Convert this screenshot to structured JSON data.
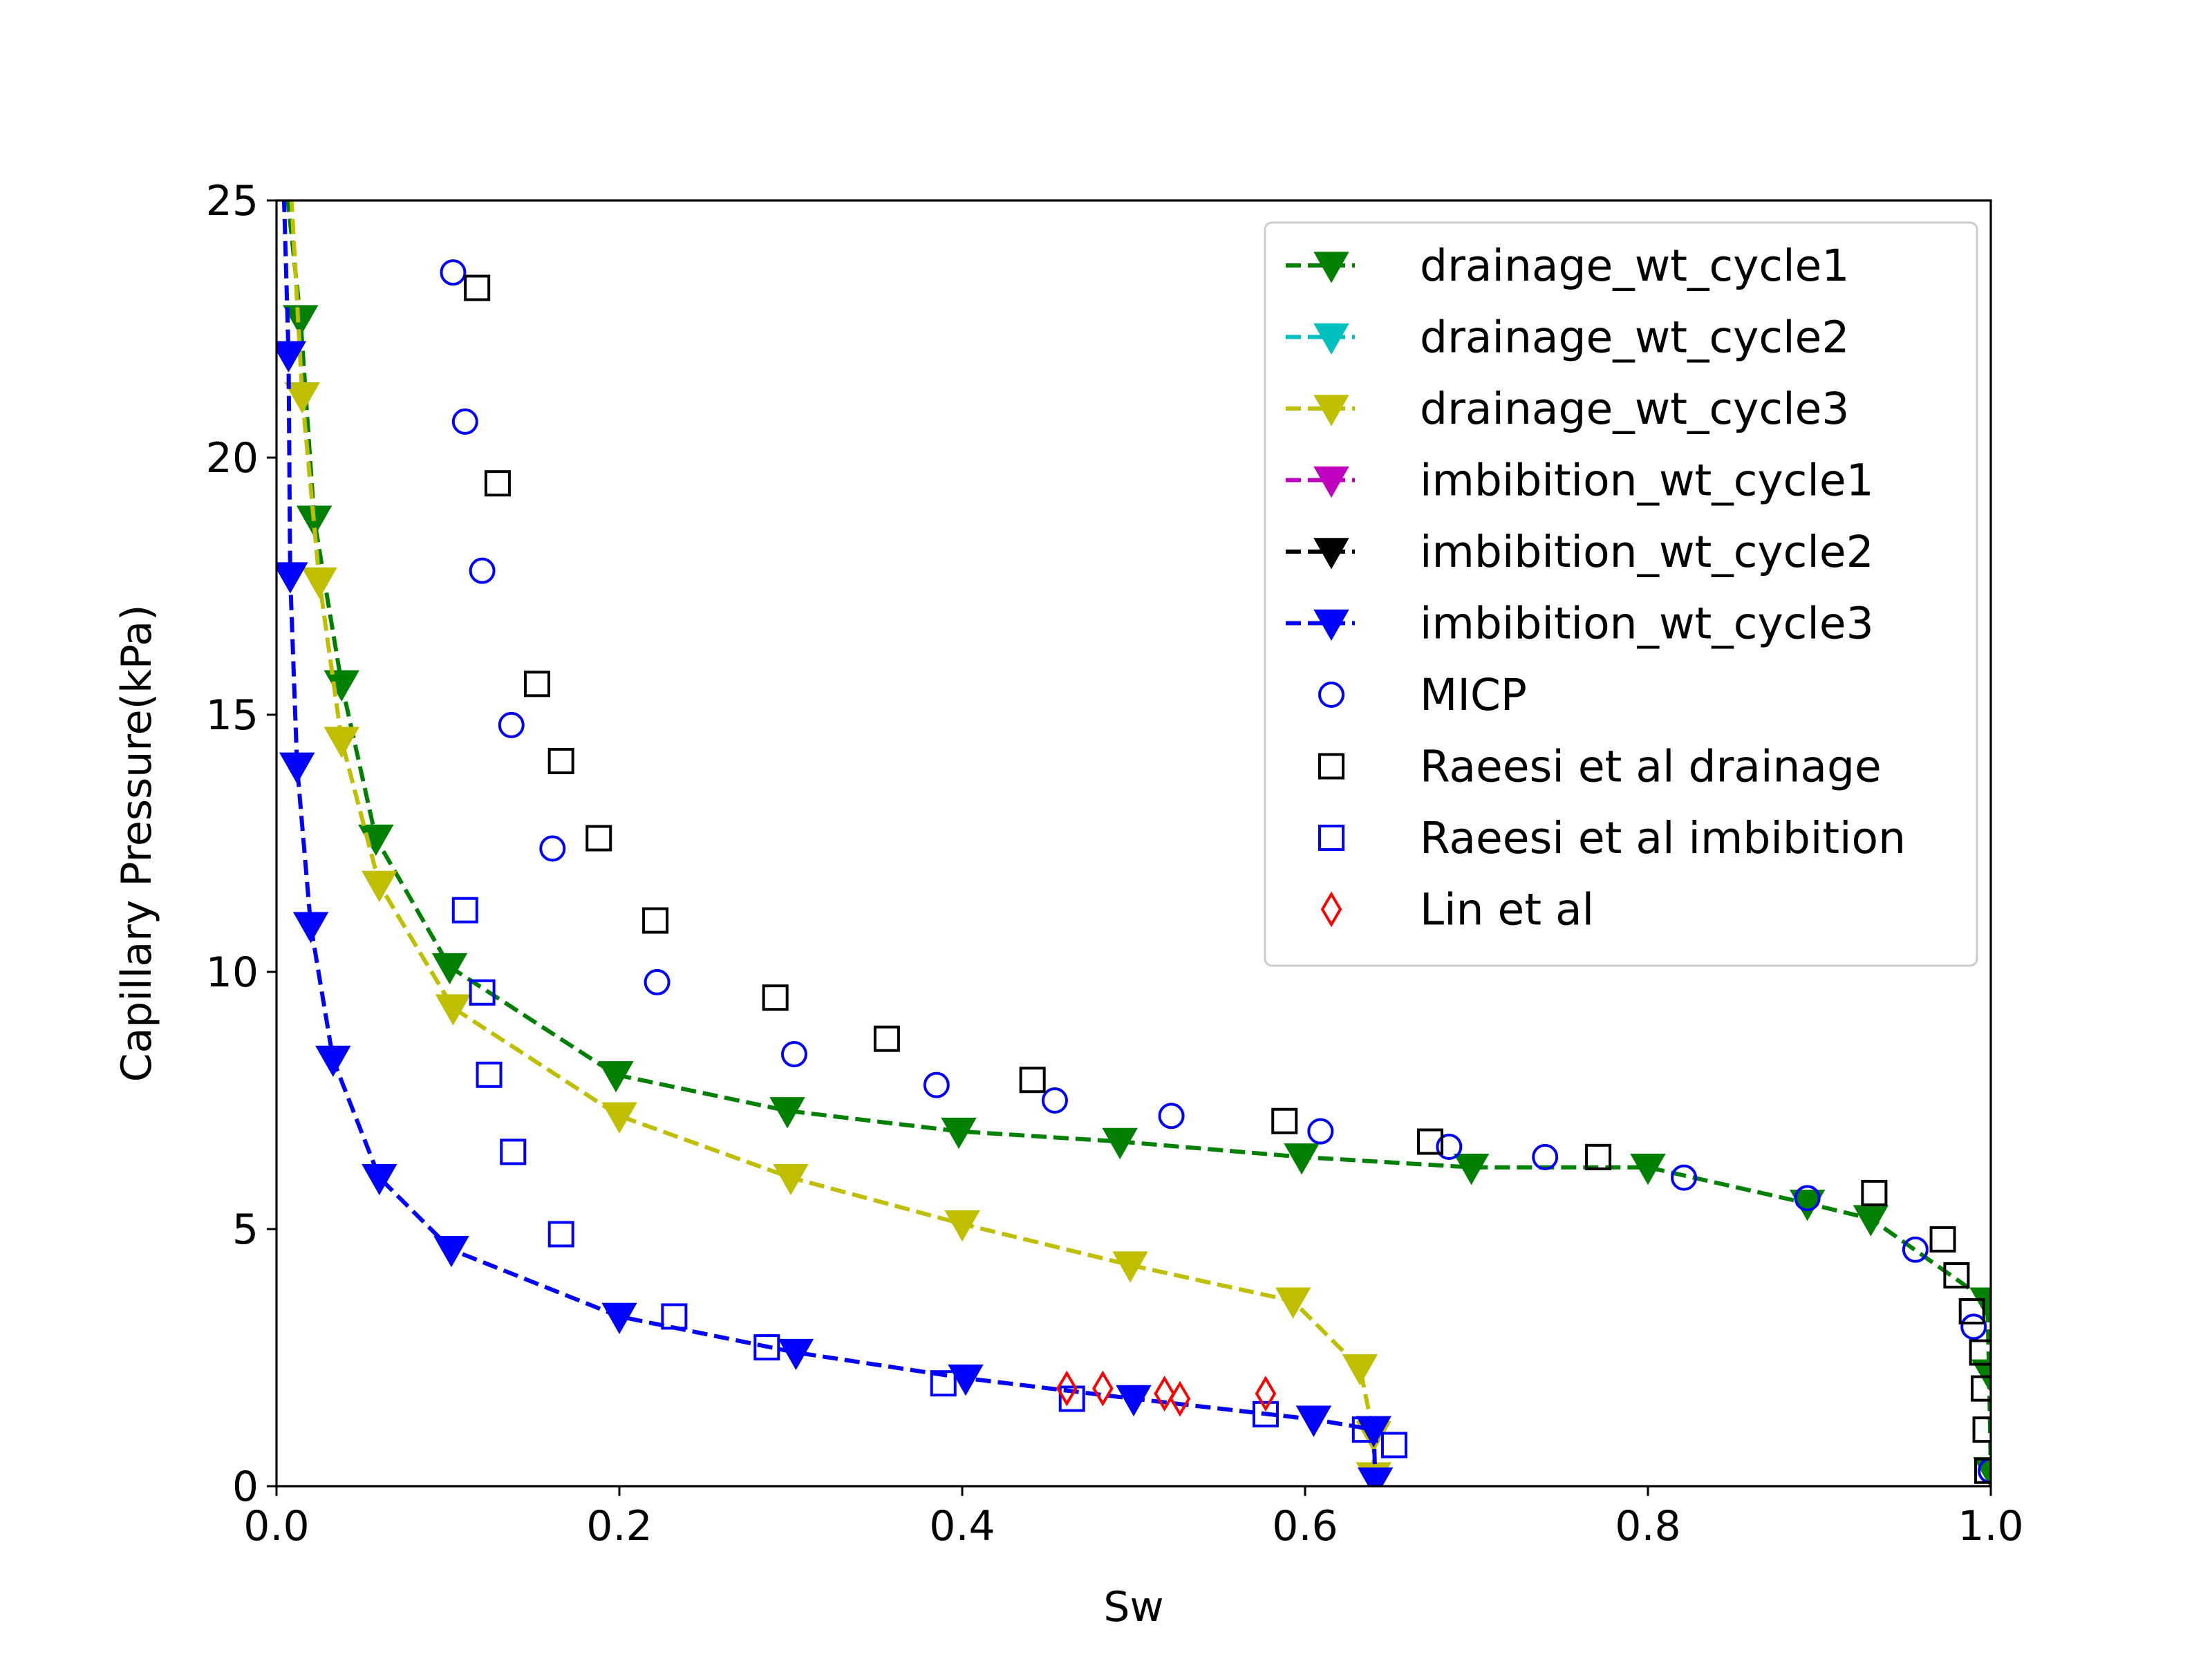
{
  "chart_data": {
    "type": "scatter",
    "title": "",
    "xlabel": "Sw",
    "ylabel": "Capillary Pressure(kPa)",
    "xlim": [
      0.0,
      1.0
    ],
    "ylim": [
      0,
      25
    ],
    "xticks": [
      0.0,
      0.2,
      0.4,
      0.6,
      0.8,
      1.0
    ],
    "xtick_labels": [
      "0.0",
      "0.2",
      "0.4",
      "0.6",
      "0.8",
      "1.0"
    ],
    "yticks": [
      0,
      5,
      10,
      15,
      20,
      25
    ],
    "ytick_labels": [
      "0",
      "5",
      "10",
      "15",
      "20",
      "25"
    ],
    "grid": false,
    "legend_position": "upper right",
    "series": [
      {
        "name": "drainage_wt_cycle1",
        "kind": "line",
        "color": "#008000",
        "marker": "triangle-down",
        "x": [
          0.005,
          0.014,
          0.022,
          0.038,
          0.058,
          0.101,
          0.198,
          0.298,
          0.398,
          0.492,
          0.598,
          0.697,
          0.8,
          0.893,
          0.93,
          0.998,
          0.999,
          1.0
        ],
        "y": [
          25.5,
          22.7,
          18.8,
          15.6,
          12.6,
          10.1,
          8.0,
          7.3,
          6.9,
          6.7,
          6.4,
          6.2,
          6.2,
          5.5,
          5.2,
          3.6,
          2.2,
          0.3
        ]
      },
      {
        "name": "drainage_wt_cycle2",
        "kind": "line",
        "color": "#00bfbf",
        "marker": "triangle-down",
        "x": [],
        "y": []
      },
      {
        "name": "drainage_wt_cycle3",
        "kind": "line",
        "color": "#bfbf00",
        "marker": "triangle-down",
        "x": [
          0.008,
          0.015,
          0.025,
          0.038,
          0.06,
          0.103,
          0.2,
          0.3,
          0.4,
          0.498,
          0.593,
          0.632,
          0.64,
          0.64
        ],
        "y": [
          25.5,
          21.2,
          17.6,
          14.5,
          11.7,
          9.3,
          7.2,
          6.0,
          5.1,
          4.3,
          3.6,
          2.3,
          1.0,
          0.2
        ]
      },
      {
        "name": "imbibition_wt_cycle1",
        "kind": "line",
        "color": "#bf00bf",
        "marker": "triangle-down",
        "x": [],
        "y": []
      },
      {
        "name": "imbibition_wt_cycle2",
        "kind": "line",
        "color": "#000000",
        "marker": "triangle-down",
        "x": [],
        "y": []
      },
      {
        "name": "imbibition_wt_cycle3",
        "kind": "line",
        "color": "#0000ff",
        "marker": "triangle-down",
        "x": [
          0.004,
          0.007,
          0.008,
          0.012,
          0.02,
          0.033,
          0.06,
          0.102,
          0.2,
          0.303,
          0.402,
          0.5,
          0.605,
          0.64,
          0.641
        ],
        "y": [
          25.5,
          22.0,
          17.7,
          14.0,
          10.9,
          8.3,
          6.0,
          4.6,
          3.3,
          2.6,
          2.1,
          1.7,
          1.3,
          1.1,
          0.1
        ]
      },
      {
        "name": "MICP",
        "kind": "scatter",
        "color": "#0000ff",
        "marker": "circle",
        "x": [
          0.103,
          0.11,
          0.12,
          0.137,
          0.161,
          0.222,
          0.302,
          0.385,
          0.454,
          0.522,
          0.609,
          0.684,
          0.74,
          0.821,
          0.893,
          0.956,
          0.99,
          1.0
        ],
        "y": [
          23.6,
          20.7,
          17.8,
          14.8,
          12.4,
          9.8,
          8.4,
          7.8,
          7.5,
          7.2,
          6.9,
          6.6,
          6.4,
          6.0,
          5.6,
          4.6,
          3.1,
          0.3
        ]
      },
      {
        "name": "Raeesi et al drainage",
        "kind": "scatter",
        "color": "#000000",
        "marker": "square",
        "x": [
          0.117,
          0.129,
          0.152,
          0.166,
          0.188,
          0.221,
          0.291,
          0.356,
          0.441,
          0.588,
          0.673,
          0.771,
          0.932,
          0.972,
          0.98,
          0.989,
          0.995,
          0.996,
          0.997,
          0.998
        ],
        "y": [
          23.3,
          19.5,
          15.6,
          14.1,
          12.6,
          11.0,
          9.5,
          8.7,
          7.9,
          7.1,
          6.7,
          6.4,
          5.7,
          4.8,
          4.1,
          3.4,
          2.6,
          1.9,
          1.1,
          0.3
        ]
      },
      {
        "name": "Raeesi et al imbibition",
        "kind": "scatter",
        "color": "#0000ff",
        "marker": "square",
        "x": [
          0.11,
          0.12,
          0.124,
          0.138,
          0.166,
          0.232,
          0.286,
          0.389,
          0.464,
          0.577,
          0.635,
          0.652
        ],
        "y": [
          11.2,
          9.6,
          8.0,
          6.5,
          4.9,
          3.3,
          2.7,
          2.0,
          1.7,
          1.4,
          1.1,
          0.8
        ]
      },
      {
        "name": "Lin et al",
        "kind": "scatter",
        "color": "#ff0000",
        "marker": "diamond",
        "x": [
          0.461,
          0.482,
          0.518,
          0.527,
          0.577
        ],
        "y": [
          1.9,
          1.9,
          1.8,
          1.7,
          1.8
        ]
      }
    ]
  }
}
